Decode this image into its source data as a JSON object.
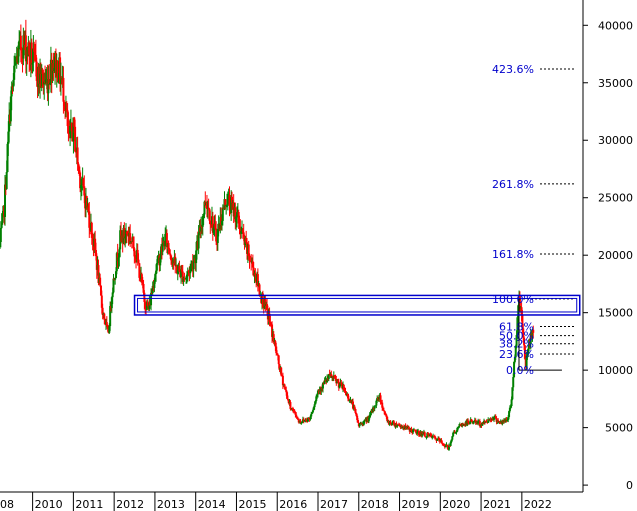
{
  "chart_data": {
    "type": "candlestick",
    "y_axis": {
      "position": "right",
      "ticks": [
        0,
        5000,
        10000,
        15000,
        20000,
        25000,
        30000,
        35000,
        40000
      ],
      "range": [
        -600,
        42200
      ]
    },
    "x_axis": {
      "labels": [
        "08",
        "2010",
        "2011",
        "2012",
        "2013",
        "2014",
        "2015",
        "2016",
        "2017",
        "2018",
        "2019",
        "2020",
        "2021",
        "2022"
      ],
      "range": [
        2009.2,
        2023.5
      ]
    },
    "colors": {
      "up": "#008000",
      "down": "#ff0000",
      "fib": "#0000cc",
      "axis": "#000000"
    },
    "price_path": [
      [
        2009.2,
        21000
      ],
      [
        2009.3,
        24000
      ],
      [
        2009.45,
        33000
      ],
      [
        2009.6,
        37000
      ],
      [
        2009.75,
        38500
      ],
      [
        2009.95,
        37500
      ],
      [
        2010.15,
        35500
      ],
      [
        2010.35,
        35000
      ],
      [
        2010.5,
        37000
      ],
      [
        2010.65,
        36000
      ],
      [
        2010.78,
        34000
      ],
      [
        2010.82,
        32500
      ],
      [
        2010.88,
        30000
      ],
      [
        2011.0,
        31000
      ],
      [
        2011.15,
        27000
      ],
      [
        2011.35,
        24000
      ],
      [
        2011.55,
        20000
      ],
      [
        2011.7,
        15500
      ],
      [
        2011.85,
        13000
      ],
      [
        2011.95,
        17000
      ],
      [
        2012.15,
        21500
      ],
      [
        2012.35,
        22000
      ],
      [
        2012.55,
        20000
      ],
      [
        2012.75,
        16000
      ],
      [
        2012.85,
        15300
      ],
      [
        2013.0,
        18500
      ],
      [
        2013.25,
        21500
      ],
      [
        2013.5,
        19000
      ],
      [
        2013.75,
        18000
      ],
      [
        2014.0,
        20000
      ],
      [
        2014.25,
        25000
      ],
      [
        2014.5,
        21500
      ],
      [
        2014.75,
        25000
      ],
      [
        2015.0,
        23500
      ],
      [
        2015.2,
        21000
      ],
      [
        2015.45,
        18500
      ],
      [
        2015.6,
        16500
      ],
      [
        2015.8,
        14500
      ],
      [
        2015.95,
        12000
      ],
      [
        2016.1,
        9500
      ],
      [
        2016.3,
        7000
      ],
      [
        2016.55,
        5500
      ],
      [
        2016.8,
        5800
      ],
      [
        2017.0,
        8200
      ],
      [
        2017.3,
        9500
      ],
      [
        2017.6,
        8500
      ],
      [
        2017.85,
        7000
      ],
      [
        2018.0,
        5200
      ],
      [
        2018.25,
        5800
      ],
      [
        2018.5,
        7800
      ],
      [
        2018.7,
        5500
      ],
      [
        2019.0,
        5200
      ],
      [
        2019.4,
        4600
      ],
      [
        2019.8,
        4200
      ],
      [
        2020.0,
        3800
      ],
      [
        2020.2,
        3200
      ],
      [
        2020.3,
        4400
      ],
      [
        2020.5,
        5200
      ],
      [
        2020.8,
        5600
      ],
      [
        2021.0,
        5300
      ],
      [
        2021.3,
        5900
      ],
      [
        2021.5,
        5400
      ],
      [
        2021.65,
        5700
      ],
      [
        2021.75,
        7500
      ],
      [
        2021.85,
        12500
      ],
      [
        2021.93,
        16200
      ],
      [
        2022.0,
        14800
      ],
      [
        2022.05,
        12000
      ],
      [
        2022.1,
        10500
      ],
      [
        2022.18,
        12500
      ],
      [
        2022.28,
        13500
      ]
    ],
    "fibonacci_levels": [
      {
        "label": "423.6%",
        "value": 36200
      },
      {
        "label": "261.8%",
        "value": 26200
      },
      {
        "label": "161.8%",
        "value": 20100
      },
      {
        "label": "100.0%",
        "value": 16200
      },
      {
        "label": "61.8%",
        "value": 13800
      },
      {
        "label": "50.0%",
        "value": 13000
      },
      {
        "label": "38.2%",
        "value": 12300
      },
      {
        "label": "23.6%",
        "value": 11400
      },
      {
        "label": "0.0%",
        "value": 10000
      }
    ],
    "zone": {
      "x0": 2012.5,
      "x1": 2023.42,
      "y_low": 14800,
      "y_high": 16500
    },
    "last_swing": {
      "x0": 2021.93,
      "x1": 2022.1,
      "high": 16200,
      "low": 10000
    }
  }
}
